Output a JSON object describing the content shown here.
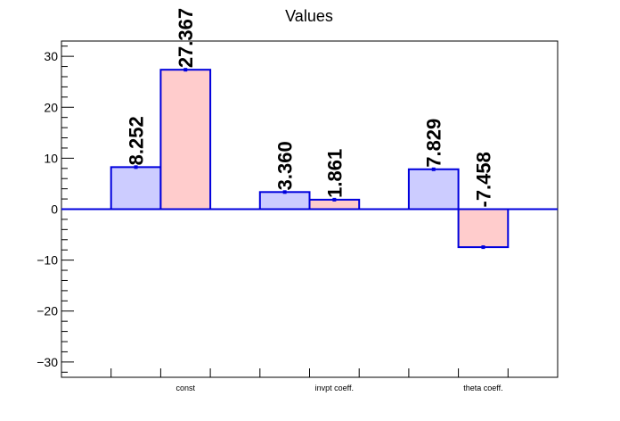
{
  "chart_data": {
    "type": "bar",
    "title": "Values",
    "xlabel": "",
    "ylabel": "",
    "categories": [
      "const",
      "invpt coeff.",
      "theta coeff."
    ],
    "series": [
      {
        "values": [
          8.252,
          3.36,
          7.829
        ],
        "labels": [
          "8.252",
          "3.360",
          "7.829"
        ],
        "fill": "#ccccff",
        "stroke": "#0000dd"
      },
      {
        "values": [
          27.367,
          1.861,
          -7.458
        ],
        "labels": [
          "27.367",
          "1.861",
          "-7.458"
        ],
        "fill": "#ffcccc",
        "stroke": "#0000dd"
      }
    ],
    "ylim": [
      -33,
      33
    ],
    "yticks": [
      -30,
      -20,
      -10,
      0,
      10,
      20,
      30
    ],
    "ytick_labels": [
      "−30",
      "−20",
      "−10",
      "0",
      "10",
      "20",
      "30"
    ],
    "grid": false,
    "legend": "none"
  }
}
